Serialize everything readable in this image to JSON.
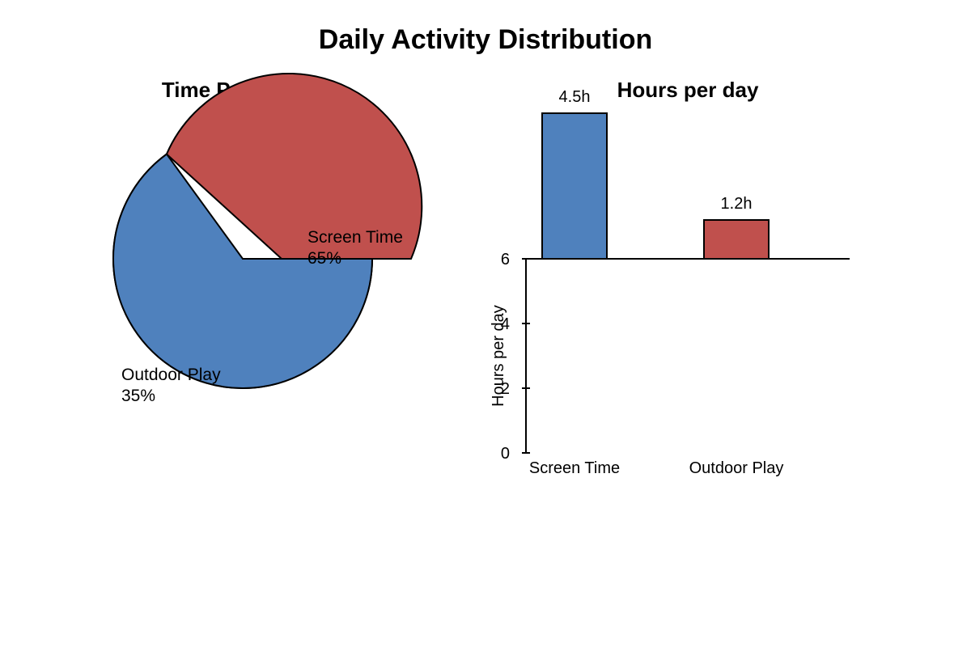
{
  "title": "Daily Activity Distribution",
  "colors": {
    "screen": "#4f81bd",
    "outdoor": "#c0504d",
    "stroke": "#000000"
  },
  "chart_data": [
    {
      "type": "pie",
      "title": "Time Proportion",
      "slices": [
        {
          "label": "Screen Time",
          "value": 65,
          "value_label": "65%",
          "color": "#4f81bd"
        },
        {
          "label": "Outdoor Play",
          "value": 35,
          "value_label": "35%",
          "color": "#c0504d"
        }
      ]
    },
    {
      "type": "bar",
      "title": "Hours per day",
      "ylabel": "Hours per day",
      "ylim": [
        0,
        6
      ],
      "yticks": [
        "0",
        "2",
        "4",
        "6"
      ],
      "categories": [
        "Screen Time",
        "Outdoor Play"
      ],
      "values": [
        4.5,
        1.2
      ],
      "value_labels": [
        "4.5h",
        "1.2h"
      ],
      "colors": [
        "#4f81bd",
        "#c0504d"
      ]
    }
  ]
}
